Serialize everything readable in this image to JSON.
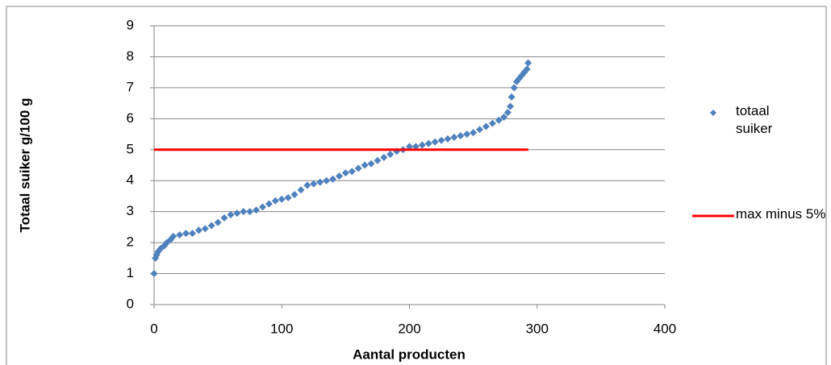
{
  "chart_data": {
    "type": "scatter",
    "xlabel": "Aantal producten",
    "ylabel": "Totaal suiker g/100 g",
    "xlim": [
      0,
      400
    ],
    "xticks": [
      0,
      100,
      200,
      300,
      400
    ],
    "ylim": [
      0,
      9
    ],
    "yticks": [
      0,
      1,
      2,
      3,
      4,
      5,
      6,
      7,
      8,
      9
    ],
    "grid": true,
    "legend": "right",
    "series": [
      {
        "name": "totaal suiker",
        "color": "#4f81bd",
        "mode": "markers",
        "x": [
          0,
          1,
          2,
          3,
          5,
          8,
          10,
          13,
          15,
          20,
          25,
          30,
          35,
          40,
          45,
          50,
          55,
          60,
          65,
          70,
          75,
          80,
          85,
          90,
          95,
          100,
          105,
          110,
          115,
          120,
          125,
          130,
          135,
          140,
          145,
          150,
          155,
          160,
          165,
          170,
          175,
          180,
          185,
          190,
          195,
          200,
          205,
          210,
          215,
          220,
          225,
          230,
          235,
          240,
          245,
          250,
          255,
          260,
          265,
          270,
          274,
          277,
          279,
          280,
          282,
          284,
          286,
          288,
          290,
          292,
          293
        ],
        "values": [
          1.0,
          1.5,
          1.6,
          1.7,
          1.8,
          1.9,
          2.0,
          2.1,
          2.2,
          2.25,
          2.3,
          2.3,
          2.4,
          2.45,
          2.55,
          2.65,
          2.8,
          2.9,
          2.95,
          3.0,
          3.0,
          3.05,
          3.15,
          3.25,
          3.35,
          3.4,
          3.45,
          3.55,
          3.7,
          3.85,
          3.9,
          3.95,
          4.0,
          4.05,
          4.15,
          4.25,
          4.3,
          4.4,
          4.5,
          4.55,
          4.65,
          4.75,
          4.85,
          4.95,
          5.0,
          5.1,
          5.1,
          5.15,
          5.2,
          5.25,
          5.3,
          5.35,
          5.4,
          5.45,
          5.5,
          5.55,
          5.65,
          5.75,
          5.85,
          5.95,
          6.05,
          6.2,
          6.4,
          6.7,
          7.0,
          7.2,
          7.3,
          7.4,
          7.5,
          7.6,
          7.8
        ]
      },
      {
        "name": "max minus 5%",
        "color": "#ff0000",
        "mode": "line",
        "x": [
          0,
          293
        ],
        "values": [
          5,
          5
        ]
      }
    ]
  }
}
